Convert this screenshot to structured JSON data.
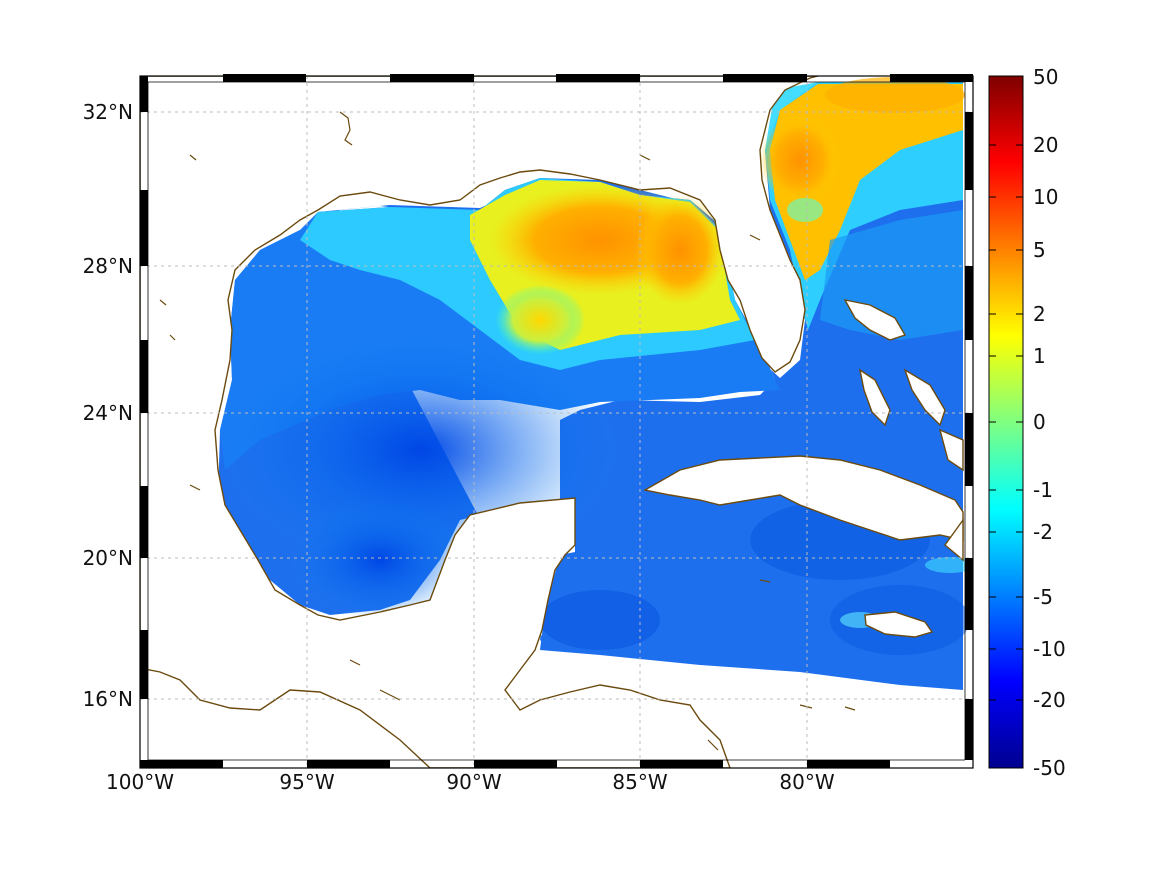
{
  "map": {
    "lon_labels": [
      "100°W",
      "95°W",
      "90°W",
      "85°W",
      "80°W"
    ],
    "lat_labels": [
      "32°N",
      "28°N",
      "24°N",
      "20°N",
      "16°N"
    ],
    "extent": {
      "lon_min": -100,
      "lon_max": -75,
      "lat_min": 14.5,
      "lat_max": 33
    }
  },
  "colorbar": {
    "tick_labels": [
      "50",
      "20",
      "10",
      "5",
      "2",
      "1",
      "0",
      "-1",
      "-2",
      "-5",
      "-10",
      "-20",
      "-50"
    ],
    "colormap": "jet",
    "colors": [
      "#7f0000",
      "#ff0000",
      "#ff8000",
      "#ffff00",
      "#80ff80",
      "#00ffff",
      "#0080ff",
      "#0000ff",
      "#00008f"
    ]
  },
  "colors": {
    "coastline": "#6b4a0e",
    "grid": "#bdbdbd",
    "land": "#ffffff"
  }
}
